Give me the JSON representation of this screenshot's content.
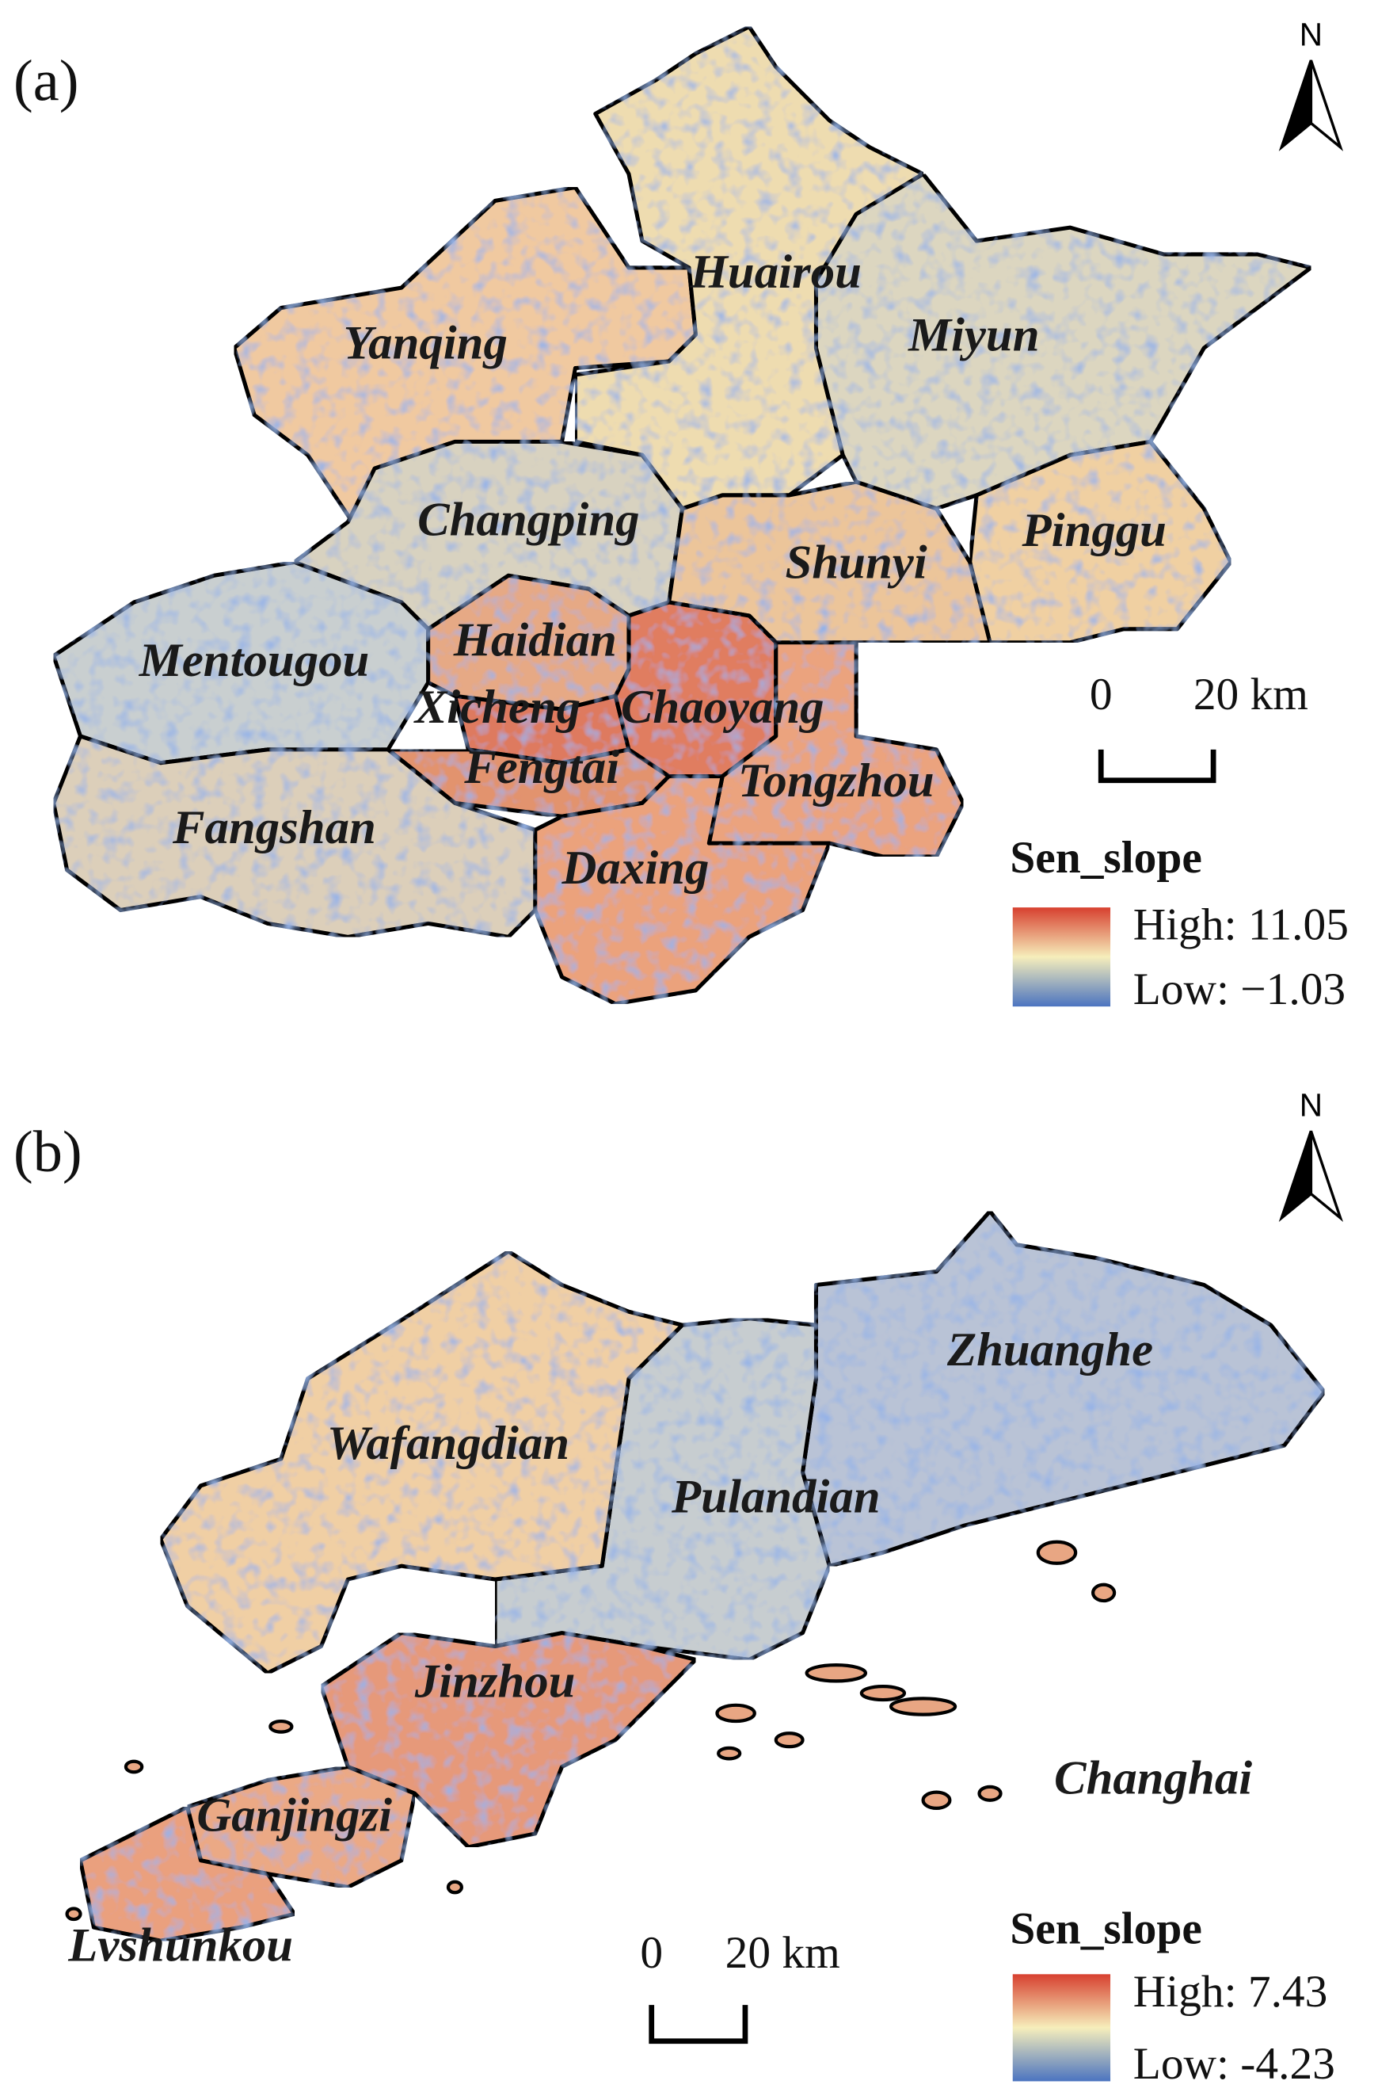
{
  "panels": [
    {
      "label": "(a)",
      "north": "N",
      "districts": [
        "Yanqing",
        "Huairou",
        "Miyun",
        "Changping",
        "Pinggu",
        "Shunyi",
        "Haidian",
        "Mentougou",
        "Xicheng",
        "Chaoyang",
        "Fengtai",
        "Tongzhou",
        "Fangshan",
        "Daxing"
      ],
      "scale_bar": {
        "start": "0",
        "end": "20 km"
      },
      "legend": {
        "title": "Sen_slope",
        "high": "High: 11.05",
        "low": "Low: −1.03"
      }
    },
    {
      "label": "(b)",
      "north": "N",
      "districts": [
        "Zhuanghe",
        "Wafangdian",
        "Pulandian",
        "Jinzhou",
        "Changhai",
        "Ganjingzi",
        "Lvshunkou"
      ],
      "scale_bar": {
        "start": "0",
        "end": "20 km"
      },
      "legend": {
        "title": "Sen_slope",
        "high": "High: 7.43",
        "low": "Low: -4.23"
      }
    }
  ]
}
